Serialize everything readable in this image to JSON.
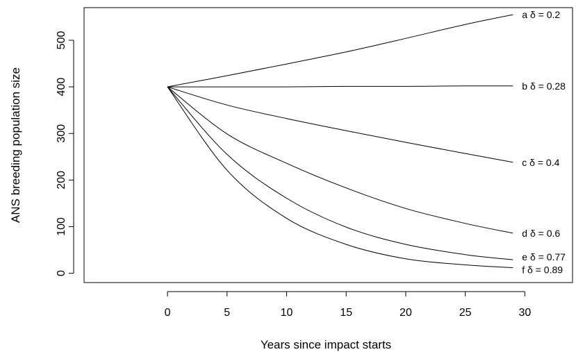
{
  "chart_data": {
    "type": "line",
    "xlabel": "Years since impact starts",
    "ylabel": "ANS breeding population size",
    "xlim": [
      -7,
      34
    ],
    "ylim": [
      -20,
      570
    ],
    "xticks": [
      0,
      5,
      10,
      15,
      20,
      25,
      30
    ],
    "yticks": [
      0,
      100,
      200,
      300,
      400,
      500
    ],
    "grid": false,
    "legend": "none",
    "x": [
      0,
      5,
      10,
      15,
      20,
      25,
      29
    ],
    "series": [
      {
        "label": "a   δ = 0.2",
        "values": [
          400,
          424,
          449,
          475,
          504,
          534,
          555
        ]
      },
      {
        "label": "b   δ = 0.28",
        "values": [
          400,
          400,
          400,
          401,
          401,
          402,
          402
        ]
      },
      {
        "label": "c   δ = 0.4",
        "values": [
          400,
          361,
          332,
          306,
          281,
          257,
          238
        ]
      },
      {
        "label": "d   δ = 0.6",
        "values": [
          400,
          299,
          236,
          183,
          139,
          107,
          86
        ]
      },
      {
        "label": "e   δ = 0.77",
        "values": [
          400,
          255,
          161,
          99,
          62,
          40,
          29
        ]
      },
      {
        "label": "f   δ = 0.89",
        "values": [
          400,
          221,
          118,
          62,
          31,
          18,
          12
        ]
      }
    ],
    "color": "#000000"
  }
}
